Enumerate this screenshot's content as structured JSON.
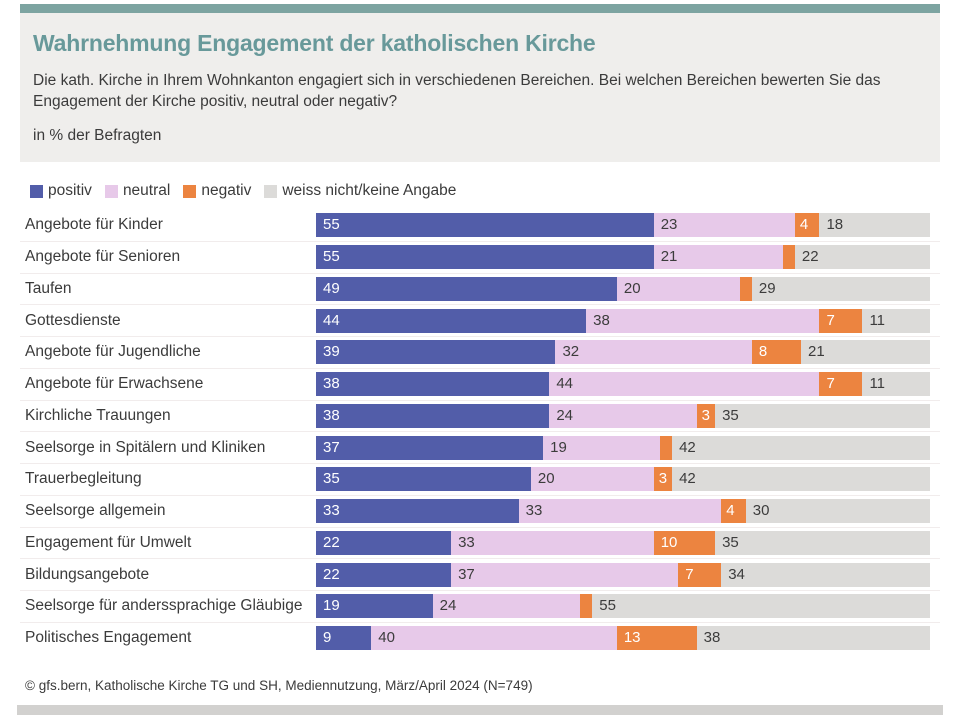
{
  "header": {
    "title": "Wahrnehmung Engagement der katholischen Kirche",
    "subtitle": "Die kath. Kirche in Ihrem Wohnkanton engagiert sich in verschiedenen Bereichen. Bei welchen Bereichen bewerten Sie das Engagement der Kirche positiv, neutral oder negativ?",
    "unit_note": "in % der Befragten"
  },
  "colors": {
    "accent_teal": "#7da4a1",
    "header_box_bg": "#efeeec",
    "title_teal": "#68999a",
    "text_dark": "#3b3b3b",
    "positiv": "#525da9",
    "neutral": "#e7c9e9",
    "negativ": "#ec8440",
    "weiss_nicht": "#dcdbd9",
    "row_separator": "#f1ecec",
    "bottom_bar": "#d2d1cf",
    "label_on_dark": "#ffffff",
    "label_on_light": "#3c3c3c"
  },
  "legend": [
    {
      "label": "positiv",
      "color": "#525da9"
    },
    {
      "label": "neutral",
      "color": "#e7c9e9"
    },
    {
      "label": "negativ",
      "color": "#ec8440"
    },
    {
      "label": "weiss nicht/keine Angabe",
      "color": "#dcdbd9"
    }
  ],
  "chart_data": {
    "type": "bar",
    "orientation": "horizontal",
    "stacked": true,
    "unit": "% der Befragten",
    "xlim": [
      0,
      100
    ],
    "value_label_min": 3,
    "note": "stacked segments labelled with their percentage; segments below 3% carry no label",
    "categories": [
      "Angebote für Kinder",
      "Angebote für Senioren",
      "Taufen",
      "Gottesdienste",
      "Angebote für Jugendliche",
      "Angebote für Erwachsene",
      "Kirchliche Trauungen",
      "Seelsorge in Spitälern und Kliniken",
      "Trauerbegleitung",
      "Seelsorge allgemein",
      "Engagement für Umwelt",
      "Bildungsangebote",
      "Seelsorge für anderssprachige Gläubige",
      "Politisches Engagement"
    ],
    "series": [
      {
        "name": "positiv",
        "color": "#525da9",
        "text_color": "#ffffff",
        "values": [
          55,
          55,
          49,
          44,
          39,
          38,
          38,
          37,
          35,
          33,
          22,
          22,
          19,
          9
        ]
      },
      {
        "name": "neutral",
        "color": "#e7c9e9",
        "text_color": "#3c3c3c",
        "values": [
          23,
          21,
          20,
          38,
          32,
          44,
          24,
          19,
          20,
          33,
          33,
          37,
          24,
          40
        ]
      },
      {
        "name": "negativ",
        "color": "#ec8440",
        "text_color": "#ffffff",
        "values": [
          4,
          2,
          2,
          7,
          8,
          7,
          3,
          2,
          3,
          4,
          10,
          7,
          2,
          13
        ]
      },
      {
        "name": "weiss nicht/keine Angabe",
        "color": "#dcdbd9",
        "text_color": "#3c3c3c",
        "values": [
          18,
          22,
          29,
          11,
          21,
          11,
          35,
          42,
          42,
          30,
          35,
          34,
          55,
          38
        ]
      }
    ]
  },
  "footer": "© gfs.bern, Katholische Kirche TG und SH, Mediennutzung, März/April 2024 (N=749)"
}
